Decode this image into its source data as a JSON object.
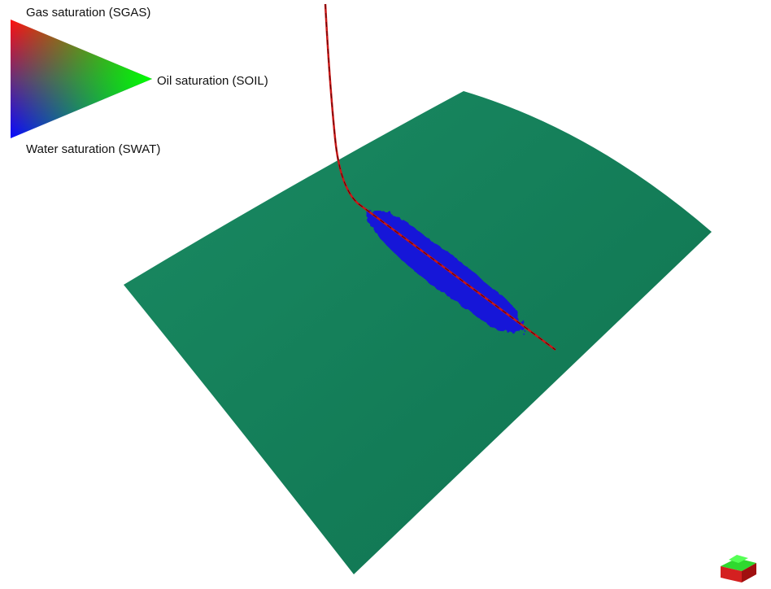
{
  "legend": {
    "labels": [
      "Gas saturation (SGAS)",
      "Oil saturation (SOIL)",
      "Water saturation (SWAT)"
    ]
  }
}
